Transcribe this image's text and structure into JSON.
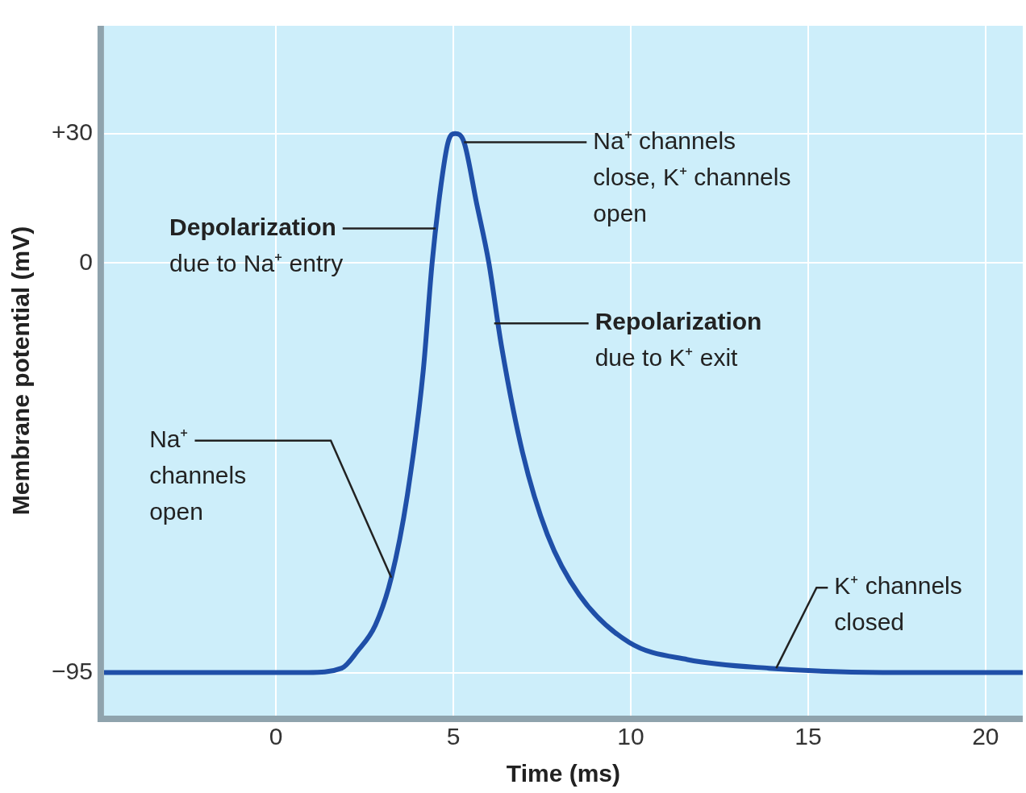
{
  "chart_data": {
    "type": "line",
    "xlabel": "Time (ms)",
    "ylabel": "Membrane potential (mV)",
    "x": [
      -4.85,
      0.9,
      1.85,
      2.3,
      2.8,
      3.25,
      3.7,
      4.15,
      4.4,
      4.65,
      4.85,
      5.05,
      5.3,
      5.65,
      6.0,
      6.35,
      6.95,
      7.65,
      8.55,
      9.95,
      11.6,
      13.9,
      17.1,
      21.05
    ],
    "series": [
      {
        "color": "#1f4fa8",
        "values": [
          -95,
          -95,
          -94,
          -90,
          -84,
          -73,
          -54,
          -25,
          0,
          18,
          28,
          30,
          28,
          14,
          0,
          -19,
          -44,
          -63,
          -77,
          -88,
          -92,
          -94,
          -95,
          -95
        ]
      }
    ],
    "xlim": [
      -4.85,
      21.05
    ],
    "ylim": [
      -105,
      55
    ],
    "xticks": [
      0,
      5,
      10,
      15,
      20
    ],
    "yticks": [
      {
        "value": 30,
        "label": "+30"
      },
      0,
      {
        "value": -95,
        "label": "−95"
      }
    ],
    "grid": true,
    "annotations": [
      {
        "text": "Depolarization\ndue to Na⁺ entry",
        "x": 4.5,
        "y": 8
      },
      {
        "text": "Na⁺ channels\nclose, K⁺ channels\nopen",
        "x": 5.3,
        "y": 28
      },
      {
        "text": "Repolarization\ndue to K⁺ exit",
        "x": 6.15,
        "y": -14
      },
      {
        "text": "Na⁺\nchannels\nopen",
        "x": 3.25,
        "y": -73
      },
      {
        "text": "K⁺ channels\nclosed",
        "x": 14.1,
        "y": -94
      }
    ]
  }
}
